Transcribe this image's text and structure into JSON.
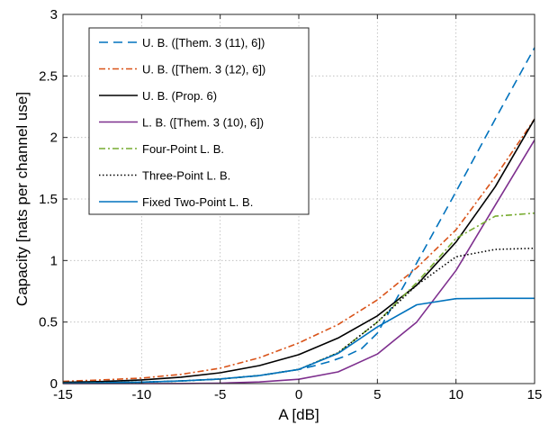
{
  "chart_data": {
    "type": "line",
    "xlabel": "A [dB]",
    "ylabel": "Capacity [nats per channel use]",
    "xlim": [
      -15,
      15
    ],
    "ylim": [
      0,
      3
    ],
    "xticks": [
      -15,
      -10,
      -5,
      0,
      5,
      10,
      15
    ],
    "yticks": [
      0,
      0.5,
      1,
      1.5,
      2,
      2.5,
      3
    ],
    "xtick_labels": [
      "-15",
      "-10",
      "-5",
      "0",
      "5",
      "10",
      "15"
    ],
    "ytick_labels": [
      "0",
      "0.5",
      "1",
      "1.5",
      "2",
      "2.5",
      "3"
    ],
    "grid": true,
    "legend_position": "top-left",
    "x": [
      -15,
      -12.5,
      -10,
      -7.5,
      -5,
      -2.5,
      0,
      2.5,
      5,
      7.5,
      10,
      12.5,
      15
    ],
    "series": [
      {
        "name": "U. B. ([Them. 3 (11), 6])",
        "color": "#0072bd",
        "style": "dashed",
        "x": [
          -15,
          -12.5,
          -10,
          -7.5,
          -5,
          -2.5,
          0,
          1,
          2,
          3,
          4,
          5,
          6,
          7.5,
          10,
          12.5,
          15
        ],
        "values": [
          0.004,
          0.007,
          0.012,
          0.021,
          0.037,
          0.065,
          0.115,
          0.145,
          0.18,
          0.225,
          0.285,
          0.41,
          0.64,
          0.98,
          1.56,
          2.15,
          2.73
        ]
      },
      {
        "name": "U. B. ([Them. 3 (12), 6])",
        "color": "#d95319",
        "style": "dashdot",
        "values": [
          0.018,
          0.03,
          0.045,
          0.075,
          0.125,
          0.21,
          0.33,
          0.48,
          0.68,
          0.94,
          1.25,
          1.68,
          2.15
        ]
      },
      {
        "name": "U. B. (Prop. 6)",
        "color": "#000000",
        "style": "solid",
        "values": [
          0.01,
          0.017,
          0.03,
          0.052,
          0.088,
          0.146,
          0.235,
          0.37,
          0.55,
          0.8,
          1.15,
          1.6,
          2.15
        ]
      },
      {
        "name": "L. B. ([Them. 3 (10), 6])",
        "color": "#7e2f8e",
        "style": "solid",
        "values": [
          0,
          0,
          0,
          0.001,
          0.004,
          0.013,
          0.035,
          0.095,
          0.24,
          0.5,
          0.92,
          1.45,
          1.98
        ]
      },
      {
        "name": "Four-Point L. B.",
        "color": "#77ac30",
        "style": "dashdot",
        "values": [
          0.004,
          0.007,
          0.012,
          0.021,
          0.037,
          0.065,
          0.115,
          0.25,
          0.5,
          0.82,
          1.18,
          1.36,
          1.385
        ]
      },
      {
        "name": "Three-Point L. B.",
        "color": "#000000",
        "style": "dotted",
        "values": [
          0.004,
          0.007,
          0.012,
          0.021,
          0.037,
          0.065,
          0.115,
          0.25,
          0.5,
          0.8,
          1.03,
          1.09,
          1.1
        ]
      },
      {
        "name": "Fixed Two-Point L. B.",
        "color": "#0072bd",
        "style": "solid",
        "values": [
          0.004,
          0.007,
          0.012,
          0.021,
          0.037,
          0.065,
          0.115,
          0.245,
          0.46,
          0.64,
          0.69,
          0.693,
          0.693
        ]
      }
    ]
  }
}
